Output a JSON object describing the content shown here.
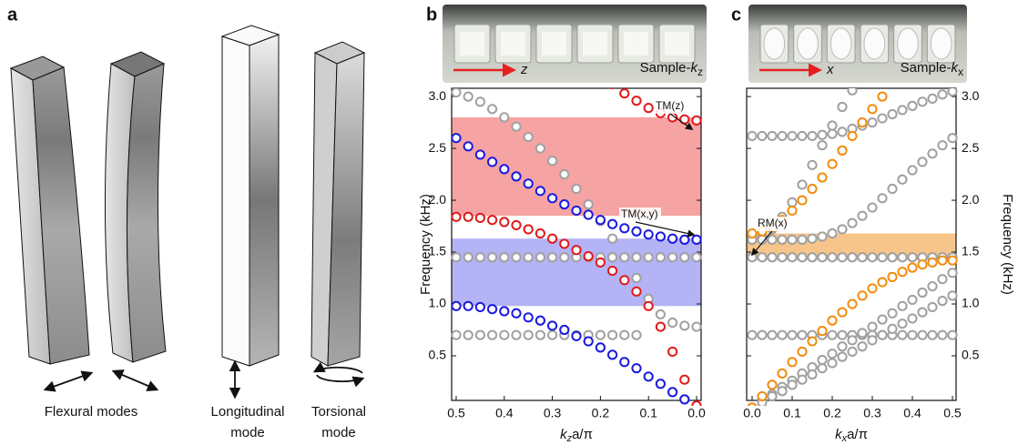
{
  "panel_a": {
    "label": "a",
    "captions": [
      "Flexural modes",
      "Longitudinal",
      "mode",
      "Torsional",
      "mode"
    ]
  },
  "chart_data": [
    {
      "type": "scatter",
      "panel": "b",
      "photo_caption": {
        "main": "Sample-",
        "k": "k",
        "sub": "z"
      },
      "arrow_label": "z",
      "xlabel": {
        "k": "k",
        "sub": "z",
        "rest": "a/π"
      },
      "ylabel": "Frequency (kHz)",
      "y_axis_side": "left",
      "x": [
        0.5,
        0.475,
        0.45,
        0.425,
        0.4,
        0.375,
        0.35,
        0.325,
        0.3,
        0.275,
        0.25,
        0.225,
        0.2,
        0.175,
        0.15,
        0.125,
        0.1,
        0.075,
        0.05,
        0.025,
        0
      ],
      "xlim": [
        0.5,
        0
      ],
      "xticks": [
        0.5,
        0.4,
        0.3,
        0.2,
        0.1,
        {
          "value": 0,
          "label": "0.0"
        }
      ],
      "ylim": [
        0.07,
        3.08
      ],
      "yticks": [
        0.5,
        {
          "value": 1,
          "label": "1.0"
        },
        1.5,
        {
          "value": 2,
          "label": "2.0"
        },
        2.5,
        {
          "value": 3,
          "label": "3.0"
        }
      ],
      "bands": [
        {
          "from": 1.85,
          "to": 2.8,
          "color": "#f5a3a3"
        },
        {
          "from": 0.98,
          "to": 1.63,
          "color": "#b3b3f5"
        }
      ],
      "annotations": [
        "TM(z)",
        "TM(x,y)"
      ],
      "series": [
        {
          "color": "#a0a0a0",
          "values": [
            3.04,
            3.0,
            2.95,
            2.88,
            2.8,
            2.71,
            2.61,
            2.5,
            2.38,
            2.25,
            2.11,
            1.96,
            1.8,
            1.63,
            1.45,
            1.25,
            1.05,
            0.9,
            0.82,
            0.79,
            0.78
          ]
        },
        {
          "color": "#a0a0a0",
          "values": [
            0.7,
            0.7,
            0.7,
            0.7,
            0.7,
            0.7,
            0.7,
            0.7,
            0.7,
            0.7,
            0.7,
            0.7,
            0.7,
            0.7,
            0.7,
            0.7,
            null,
            null,
            null,
            null,
            null
          ]
        },
        {
          "color": "#a0a0a0",
          "values": [
            1.45,
            1.45,
            1.45,
            1.45,
            1.45,
            1.45,
            1.45,
            1.45,
            1.45,
            1.45,
            1.45,
            1.45,
            1.45,
            1.45,
            1.45,
            1.45,
            1.45,
            1.45,
            1.45,
            1.45,
            1.45
          ]
        },
        {
          "color": "#1a1adf",
          "values": [
            0.98,
            0.98,
            0.97,
            0.95,
            0.93,
            0.91,
            0.87,
            0.84,
            0.79,
            0.75,
            0.69,
            0.64,
            0.58,
            0.51,
            0.44,
            0.38,
            0.3,
            0.23,
            0.15,
            0.08,
            0
          ]
        },
        {
          "color": "#1a1adf",
          "values": [
            2.6,
            2.52,
            2.44,
            2.37,
            2.3,
            2.23,
            2.16,
            2.09,
            2.02,
            1.96,
            1.9,
            1.86,
            1.81,
            1.77,
            1.73,
            1.7,
            1.67,
            1.65,
            1.63,
            1.62,
            1.62
          ]
        },
        {
          "color": "#e01a1a",
          "values": [
            1.84,
            1.84,
            1.83,
            1.81,
            1.79,
            1.76,
            1.72,
            1.68,
            1.63,
            1.58,
            1.52,
            1.46,
            1.4,
            1.32,
            1.23,
            1.12,
            0.98,
            0.78,
            0.54,
            0.27,
            0.02
          ]
        },
        {
          "color": "#e01a1a",
          "values": [
            null,
            null,
            null,
            null,
            null,
            null,
            null,
            null,
            null,
            null,
            null,
            null,
            null,
            3.12,
            3.03,
            2.96,
            2.89,
            2.84,
            2.8,
            2.78,
            2.77
          ]
        }
      ]
    },
    {
      "type": "scatter",
      "panel": "c",
      "photo_caption": {
        "main": "Sample-",
        "k": "k",
        "sub": "x"
      },
      "arrow_label": "x",
      "xlabel": {
        "k": "k",
        "sub": "x",
        "rest": "a/π"
      },
      "ylabel": "Frequency (kHz)",
      "y_axis_side": "right",
      "x": [
        0,
        0.025,
        0.05,
        0.075,
        0.1,
        0.125,
        0.15,
        0.175,
        0.2,
        0.225,
        0.25,
        0.275,
        0.3,
        0.325,
        0.35,
        0.375,
        0.4,
        0.425,
        0.45,
        0.475,
        0.5
      ],
      "xlim": [
        0,
        0.5
      ],
      "xticks": [
        {
          "value": 0,
          "label": "0.0"
        },
        0.1,
        0.2,
        0.3,
        0.4,
        0.5
      ],
      "ylim": [
        0.07,
        3.08
      ],
      "yticks": [
        0.5,
        {
          "value": 1,
          "label": "1.0"
        },
        1.5,
        {
          "value": 2,
          "label": "2.0"
        },
        2.5,
        {
          "value": 3,
          "label": "3.0"
        }
      ],
      "bands": [
        {
          "from": 1.42,
          "to": 1.68,
          "color": "#f7c48a"
        }
      ],
      "annotations": [
        "RM(x)"
      ],
      "series": [
        {
          "color": "#a0a0a0",
          "values": [
            2.62,
            2.62,
            2.62,
            2.62,
            2.62,
            2.62,
            2.62,
            2.63,
            2.64,
            2.66,
            2.69,
            2.72,
            2.75,
            2.79,
            2.83,
            2.87,
            2.91,
            2.95,
            2.98,
            3.02,
            3.05
          ]
        },
        {
          "color": "#a0a0a0",
          "values": [
            1.62,
            1.65,
            1.72,
            1.84,
            1.98,
            2.15,
            2.34,
            2.53,
            2.72,
            2.9,
            3.06,
            null,
            null,
            null,
            null,
            null,
            null,
            null,
            null,
            null,
            null
          ]
        },
        {
          "color": "#a0a0a0",
          "values": [
            1.62,
            1.62,
            1.62,
            1.62,
            1.62,
            1.62,
            1.63,
            1.65,
            1.68,
            1.72,
            1.78,
            1.85,
            1.93,
            2.02,
            2.11,
            2.2,
            2.29,
            2.37,
            2.45,
            2.53,
            2.6
          ]
        },
        {
          "color": "#a0a0a0",
          "values": [
            1.45,
            1.45,
            1.45,
            1.45,
            1.45,
            1.45,
            1.45,
            1.45,
            1.45,
            1.45,
            1.45,
            1.45,
            1.45,
            1.45,
            1.45,
            1.45,
            1.45,
            1.45,
            1.45,
            1.45,
            1.45
          ]
        },
        {
          "color": "#a0a0a0",
          "values": [
            0.7,
            0.7,
            0.7,
            0.7,
            0.7,
            0.7,
            0.7,
            0.7,
            0.7,
            0.7,
            0.7,
            0.7,
            0.7,
            0.7,
            0.7,
            0.7,
            0.7,
            0.7,
            0.7,
            0.7,
            0.7
          ]
        },
        {
          "color": "#a0a0a0",
          "values": [
            0,
            0.07,
            0.13,
            0.2,
            0.26,
            0.33,
            0.39,
            0.46,
            0.52,
            0.59,
            0.65,
            0.72,
            0.78,
            0.85,
            0.91,
            0.98,
            1.04,
            1.11,
            1.17,
            1.24,
            1.3
          ]
        },
        {
          "color": "#a0a0a0",
          "values": [
            0,
            0.05,
            0.11,
            0.16,
            0.22,
            0.27,
            0.32,
            0.38,
            0.43,
            0.49,
            0.54,
            0.59,
            0.65,
            0.7,
            0.76,
            0.81,
            0.86,
            0.92,
            0.97,
            1.03,
            1.08
          ]
        },
        {
          "color": "#f28c0f",
          "values": [
            0,
            0.11,
            0.22,
            0.33,
            0.44,
            0.54,
            0.64,
            0.74,
            0.84,
            0.92,
            1.0,
            1.08,
            1.15,
            1.21,
            1.26,
            1.31,
            1.35,
            1.38,
            1.4,
            1.42,
            1.42
          ]
        },
        {
          "color": "#f28c0f",
          "values": [
            1.68,
            1.7,
            1.74,
            1.81,
            1.9,
            2.0,
            2.11,
            2.22,
            2.35,
            2.48,
            2.62,
            2.75,
            2.88,
            3.0,
            null,
            null,
            null,
            null,
            null,
            null,
            null
          ]
        }
      ]
    }
  ]
}
